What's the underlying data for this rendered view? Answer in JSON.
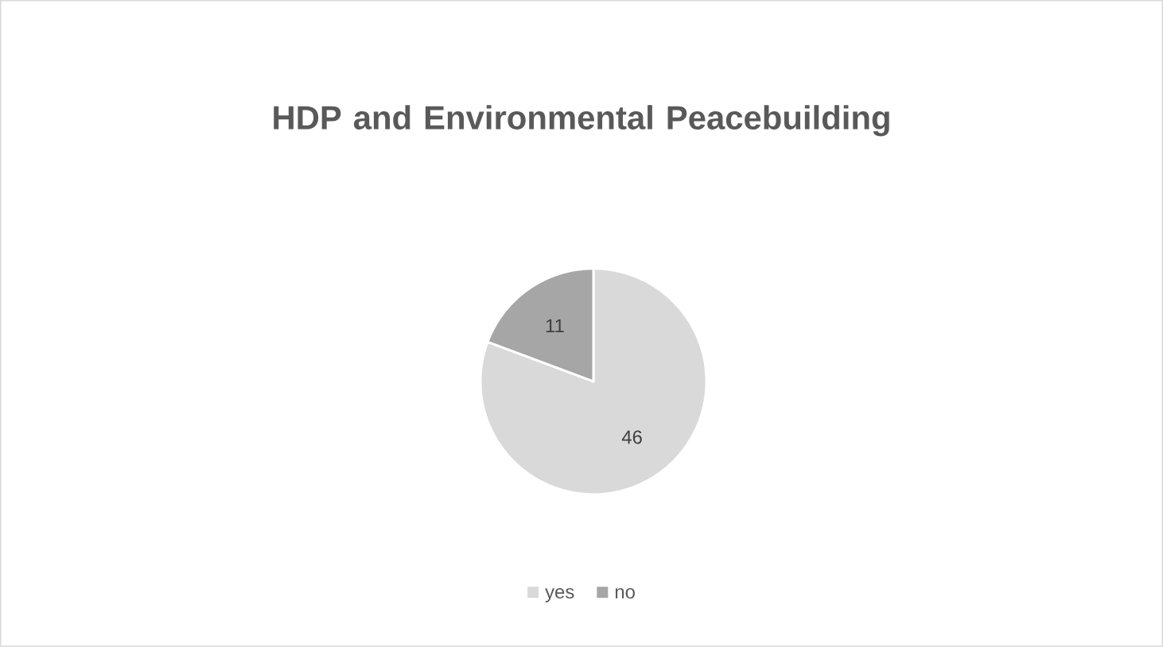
{
  "chart_data": {
    "type": "pie",
    "title": "HDP and Environmental Peacebuilding",
    "categories": [
      "yes",
      "no"
    ],
    "values": [
      46,
      11
    ],
    "colors": [
      "#d9d9d9",
      "#a6a6a6"
    ],
    "data_labels": true,
    "legend": "bottom"
  }
}
